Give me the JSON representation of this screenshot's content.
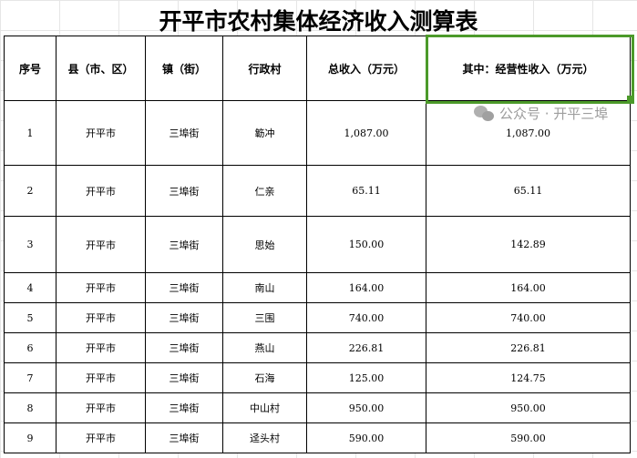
{
  "title": "开平市农村集体经济收入测算表",
  "headers": [
    "序号",
    "县（市、区）",
    "镇（街）",
    "行政村",
    "总收入（万元）",
    "其中：经营性收入（万元）"
  ],
  "rows": [
    [
      "1",
      "开平市",
      "三埠街",
      "簕冲",
      "1,087.00",
      "1,087.00"
    ],
    [
      "2",
      "开平市",
      "三埠街",
      "仁亲",
      "65.11",
      "65.11"
    ],
    [
      "3",
      "开平市",
      "三埠街",
      "思始",
      "150.00",
      "142.89"
    ],
    [
      "4",
      "开平市",
      "三埠街",
      "南山",
      "164.00",
      "164.00"
    ],
    [
      "5",
      "开平市",
      "三埠街",
      "三围",
      "740.00",
      "740.00"
    ],
    [
      "6",
      "开平市",
      "三埠街",
      "燕山",
      "226.81",
      "226.81"
    ],
    [
      "7",
      "开平市",
      "三埠街",
      "石海",
      "125.00",
      "124.75"
    ],
    [
      "8",
      "开平市",
      "三埠街",
      "中山村",
      "950.00",
      "950.00"
    ],
    [
      "9",
      "开平市",
      "三埠街",
      "迳头村",
      "590.00",
      "590.00"
    ]
  ],
  "watermark": "公众号 · 开平三埠",
  "selection_color": "#4c9a2a"
}
